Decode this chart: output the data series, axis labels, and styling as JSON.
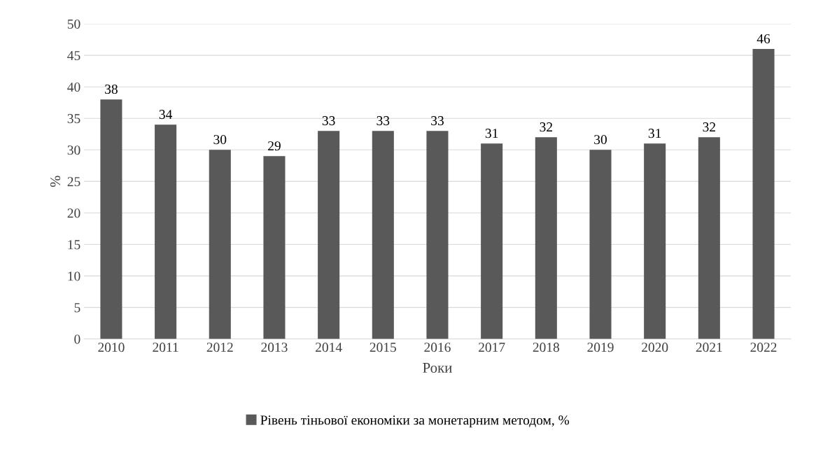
{
  "chart_data": {
    "type": "bar",
    "xlabel": "Роки",
    "ylabel": "%",
    "categories": [
      "2010",
      "2011",
      "2012",
      "2013",
      "2014",
      "2015",
      "2016",
      "2017",
      "2018",
      "2019",
      "2020",
      "2021",
      "2022"
    ],
    "series": [
      {
        "name": "Рівень тіньової економіки за монетарним методом, %",
        "color": "#595959",
        "values": [
          38,
          34,
          30,
          29,
          33,
          33,
          33,
          31,
          32,
          30,
          31,
          32,
          46
        ]
      }
    ],
    "ylim": [
      0,
      50
    ],
    "yticks": [
      0,
      5,
      10,
      15,
      20,
      25,
      30,
      35,
      40,
      45,
      50
    ],
    "grid": "y",
    "legend": "bottom",
    "data_labels": true
  }
}
